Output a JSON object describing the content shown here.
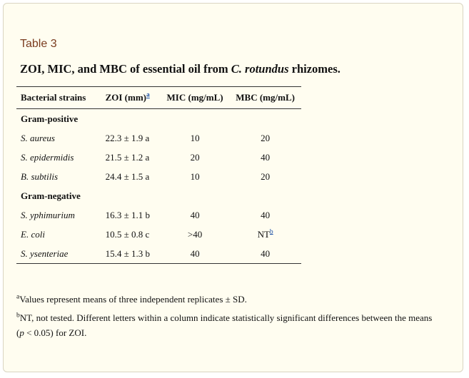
{
  "table_label": "Table 3",
  "caption": {
    "before": "ZOI, MIC, and MBC of essential oil from ",
    "italic": "C. rotundus",
    "after": " rhizomes."
  },
  "columns": {
    "strain": "Bacterial strains",
    "zoi": "ZOI (mm)",
    "zoi_sup": "a",
    "mic": "MIC (mg/mL)",
    "mbc": "MBC (mg/mL)"
  },
  "groups": [
    {
      "label": "Gram-positive",
      "rows": [
        {
          "strain": "S. aureus",
          "zoi": "22.3 ± 1.9 a",
          "mic": "10",
          "mbc": "20",
          "mbc_sup": ""
        },
        {
          "strain": "S. epidermidis",
          "zoi": "21.5 ± 1.2 a",
          "mic": "20",
          "mbc": "40",
          "mbc_sup": ""
        },
        {
          "strain": "B. subtilis",
          "zoi": "24.4 ± 1.5 a",
          "mic": "10",
          "mbc": "20",
          "mbc_sup": ""
        }
      ]
    },
    {
      "label": "Gram-negative",
      "rows": [
        {
          "strain": "S. yphimurium",
          "zoi": "16.3 ± 1.1 b",
          "mic": "40",
          "mbc": "40",
          "mbc_sup": ""
        },
        {
          "strain": "E. coli",
          "zoi": "10.5 ± 0.8 c",
          "mic": ">40",
          "mbc": "NT",
          "mbc_sup": "b"
        },
        {
          "strain": "S. ysenteriae",
          "zoi": "15.4 ± 1.3 b",
          "mic": "40",
          "mbc": "40",
          "mbc_sup": ""
        }
      ]
    }
  ],
  "footnotes": {
    "a_mark": "a",
    "a_text": "Values represent means of three independent replicates ± SD.",
    "b_mark": "b",
    "b_text_before": "NT, not tested. Different letters within a column indicate statistically significant differences between the means (",
    "b_italic": "p",
    "b_text_after": " < 0.05) for ZOI."
  }
}
